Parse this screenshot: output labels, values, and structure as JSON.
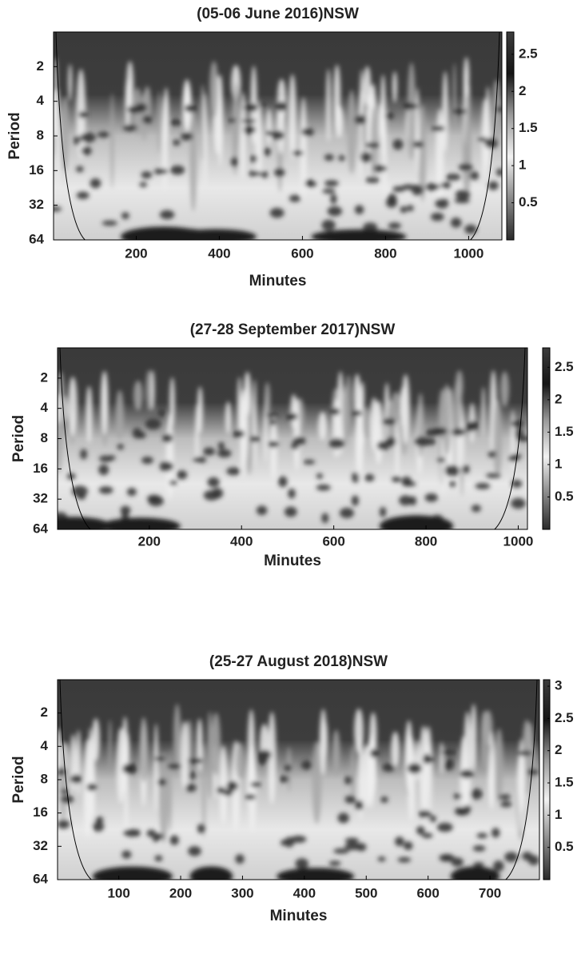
{
  "chart_data": [
    {
      "type": "scalogram",
      "title": "(05-06 June 2016)NSW",
      "xlabel": "Minutes",
      "ylabel": "Period",
      "xlim": [
        1,
        1080
      ],
      "xticks": [
        200,
        400,
        600,
        800,
        1000
      ],
      "ylim": [
        1,
        64
      ],
      "yscale": "log2",
      "yticks": [
        2,
        4,
        8,
        16,
        32,
        64
      ],
      "clim": [
        0,
        2.8
      ],
      "cticks": [
        0.5,
        1,
        1.5,
        2,
        2.5
      ],
      "colormap": [
        "#2a2a2a",
        "#8a8a8a",
        "#f2f2f2",
        "#9a9a9a",
        "#151515",
        "#3c3c3c"
      ]
    },
    {
      "type": "scalogram",
      "title": "(27-28 September 2017)NSW",
      "xlabel": "Minutes",
      "ylabel": "Period",
      "xlim": [
        1,
        1020
      ],
      "xticks": [
        200,
        400,
        600,
        800,
        1000
      ],
      "ylim": [
        1,
        64
      ],
      "yscale": "log2",
      "yticks": [
        2,
        4,
        8,
        16,
        32,
        64
      ],
      "clim": [
        0,
        2.8
      ],
      "cticks": [
        0.5,
        1,
        1.5,
        2,
        2.5
      ],
      "colormap": [
        "#2a2a2a",
        "#8a8a8a",
        "#f2f2f2",
        "#9a9a9a",
        "#151515",
        "#3c3c3c"
      ]
    },
    {
      "type": "scalogram",
      "title": "(25-27 August 2018)NSW",
      "xlabel": "Minutes",
      "ylabel": "Period",
      "xlim": [
        1,
        780
      ],
      "xticks": [
        100,
        200,
        300,
        400,
        500,
        600,
        700
      ],
      "ylim": [
        1,
        64
      ],
      "yscale": "log2",
      "yticks": [
        2,
        4,
        8,
        16,
        32,
        64
      ],
      "clim": [
        0,
        3.1
      ],
      "cticks": [
        0.5,
        1,
        1.5,
        2,
        2.5,
        3
      ],
      "colormap": [
        "#2a2a2a",
        "#8a8a8a",
        "#f2f2f2",
        "#9a9a9a",
        "#151515",
        "#3c3c3c"
      ]
    }
  ]
}
